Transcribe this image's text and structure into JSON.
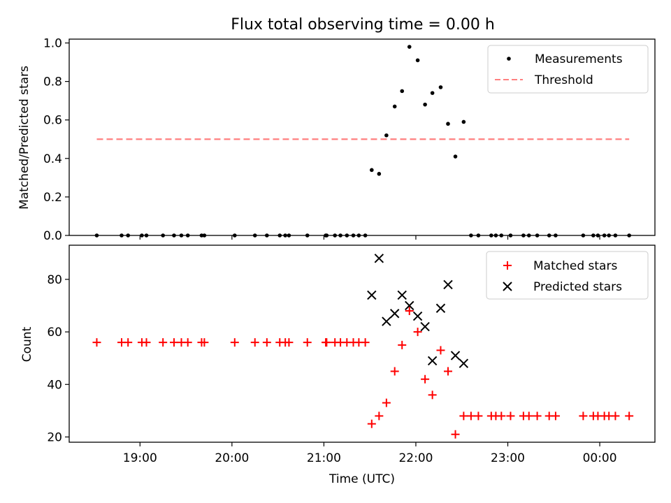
{
  "chart_data": [
    {
      "type": "scatter",
      "title": "Flux total observing time = 0.00 h",
      "xlabel": "",
      "ylabel": "Matched/Predicted stars",
      "xlim": [
        18.23,
        24.6
      ],
      "ylim": [
        0.0,
        1.02
      ],
      "yticks": [
        0.0,
        0.2,
        0.4,
        0.6,
        0.8,
        1.0
      ],
      "ytick_labels": [
        "0.0",
        "0.2",
        "0.4",
        "0.6",
        "0.8",
        "1.0"
      ],
      "legend": {
        "position": "top-right",
        "entries": [
          "Measurements",
          "Threshold"
        ]
      },
      "grid": false,
      "series": [
        {
          "name": "Measurements",
          "kind": "scatter",
          "marker": "dot",
          "color": "#000000",
          "x": [
            18.53,
            18.8,
            18.87,
            19.02,
            19.07,
            19.25,
            19.37,
            19.45,
            19.52,
            19.67,
            19.7,
            20.03,
            20.25,
            20.38,
            20.52,
            20.58,
            20.62,
            20.82,
            21.02,
            21.03,
            21.12,
            21.18,
            21.25,
            21.32,
            21.38,
            21.45,
            21.52,
            21.6,
            21.68,
            21.77,
            21.85,
            21.93,
            22.02,
            22.1,
            22.18,
            22.27,
            22.35,
            22.43,
            22.52,
            22.6,
            22.68,
            22.82,
            22.87,
            22.93,
            23.03,
            23.17,
            23.23,
            23.32,
            23.45,
            23.52,
            23.82,
            23.93,
            23.98,
            24.05,
            24.1,
            24.17,
            24.32
          ],
          "y": [
            0.0,
            0.0,
            0.0,
            0.0,
            0.0,
            0.0,
            0.0,
            0.0,
            0.0,
            0.0,
            0.0,
            0.0,
            0.0,
            0.0,
            0.0,
            0.0,
            0.0,
            0.0,
            0.0,
            0.0,
            0.0,
            0.0,
            0.0,
            0.0,
            0.0,
            0.0,
            0.34,
            0.32,
            0.52,
            0.67,
            0.75,
            0.98,
            0.91,
            0.68,
            0.74,
            0.77,
            0.58,
            0.41,
            0.59,
            0.0,
            0.0,
            0.0,
            0.0,
            0.0,
            0.0,
            0.0,
            0.0,
            0.0,
            0.0,
            0.0,
            0.0,
            0.0,
            0.0,
            0.0,
            0.0,
            0.0,
            0.0
          ]
        },
        {
          "name": "Threshold",
          "kind": "line",
          "style": "dashed",
          "color": "#ff8080",
          "x": [
            18.53,
            24.32
          ],
          "y": [
            0.5,
            0.5
          ]
        }
      ]
    },
    {
      "type": "scatter",
      "title": "",
      "xlabel": "Time (UTC)",
      "ylabel": "Count",
      "xlim": [
        18.23,
        24.6
      ],
      "ylim": [
        18,
        93
      ],
      "yticks": [
        20,
        40,
        60,
        80
      ],
      "ytick_labels": [
        "20",
        "40",
        "60",
        "80"
      ],
      "xticks": [
        19,
        20,
        21,
        22,
        23,
        24
      ],
      "xtick_labels": [
        "19:00",
        "20:00",
        "21:00",
        "22:00",
        "23:00",
        "00:00"
      ],
      "legend": {
        "position": "top-right",
        "entries": [
          "Matched stars",
          "Predicted stars"
        ]
      },
      "grid": false,
      "series": [
        {
          "name": "Matched stars",
          "kind": "scatter",
          "marker": "plus",
          "color": "#ff0000",
          "x": [
            18.53,
            18.8,
            18.87,
            19.02,
            19.07,
            19.25,
            19.37,
            19.45,
            19.52,
            19.67,
            19.7,
            20.03,
            20.25,
            20.38,
            20.52,
            20.58,
            20.62,
            20.82,
            21.02,
            21.03,
            21.12,
            21.18,
            21.25,
            21.32,
            21.38,
            21.45,
            21.52,
            21.6,
            21.68,
            21.77,
            21.85,
            21.93,
            22.02,
            22.1,
            22.18,
            22.27,
            22.35,
            22.43,
            22.52,
            22.6,
            22.68,
            22.82,
            22.87,
            22.93,
            23.03,
            23.17,
            23.23,
            23.32,
            23.45,
            23.52,
            23.82,
            23.93,
            23.98,
            24.05,
            24.1,
            24.17,
            24.32
          ],
          "y": [
            56,
            56,
            56,
            56,
            56,
            56,
            56,
            56,
            56,
            56,
            56,
            56,
            56,
            56,
            56,
            56,
            56,
            56,
            56,
            56,
            56,
            56,
            56,
            56,
            56,
            56,
            25,
            28,
            33,
            45,
            55,
            68,
            60,
            42,
            36,
            53,
            45,
            21,
            28,
            28,
            28,
            28,
            28,
            28,
            28,
            28,
            28,
            28,
            28,
            28,
            28,
            28,
            28,
            28,
            28,
            28,
            28
          ]
        },
        {
          "name": "Predicted stars",
          "kind": "scatter",
          "marker": "x",
          "color": "#000000",
          "x": [
            21.52,
            21.6,
            21.68,
            21.77,
            21.85,
            21.93,
            22.02,
            22.1,
            22.18,
            22.27,
            22.35,
            22.43,
            22.52
          ],
          "y": [
            74,
            88,
            64,
            67,
            74,
            70,
            66,
            62,
            49,
            69,
            78,
            51,
            48
          ]
        }
      ]
    }
  ]
}
